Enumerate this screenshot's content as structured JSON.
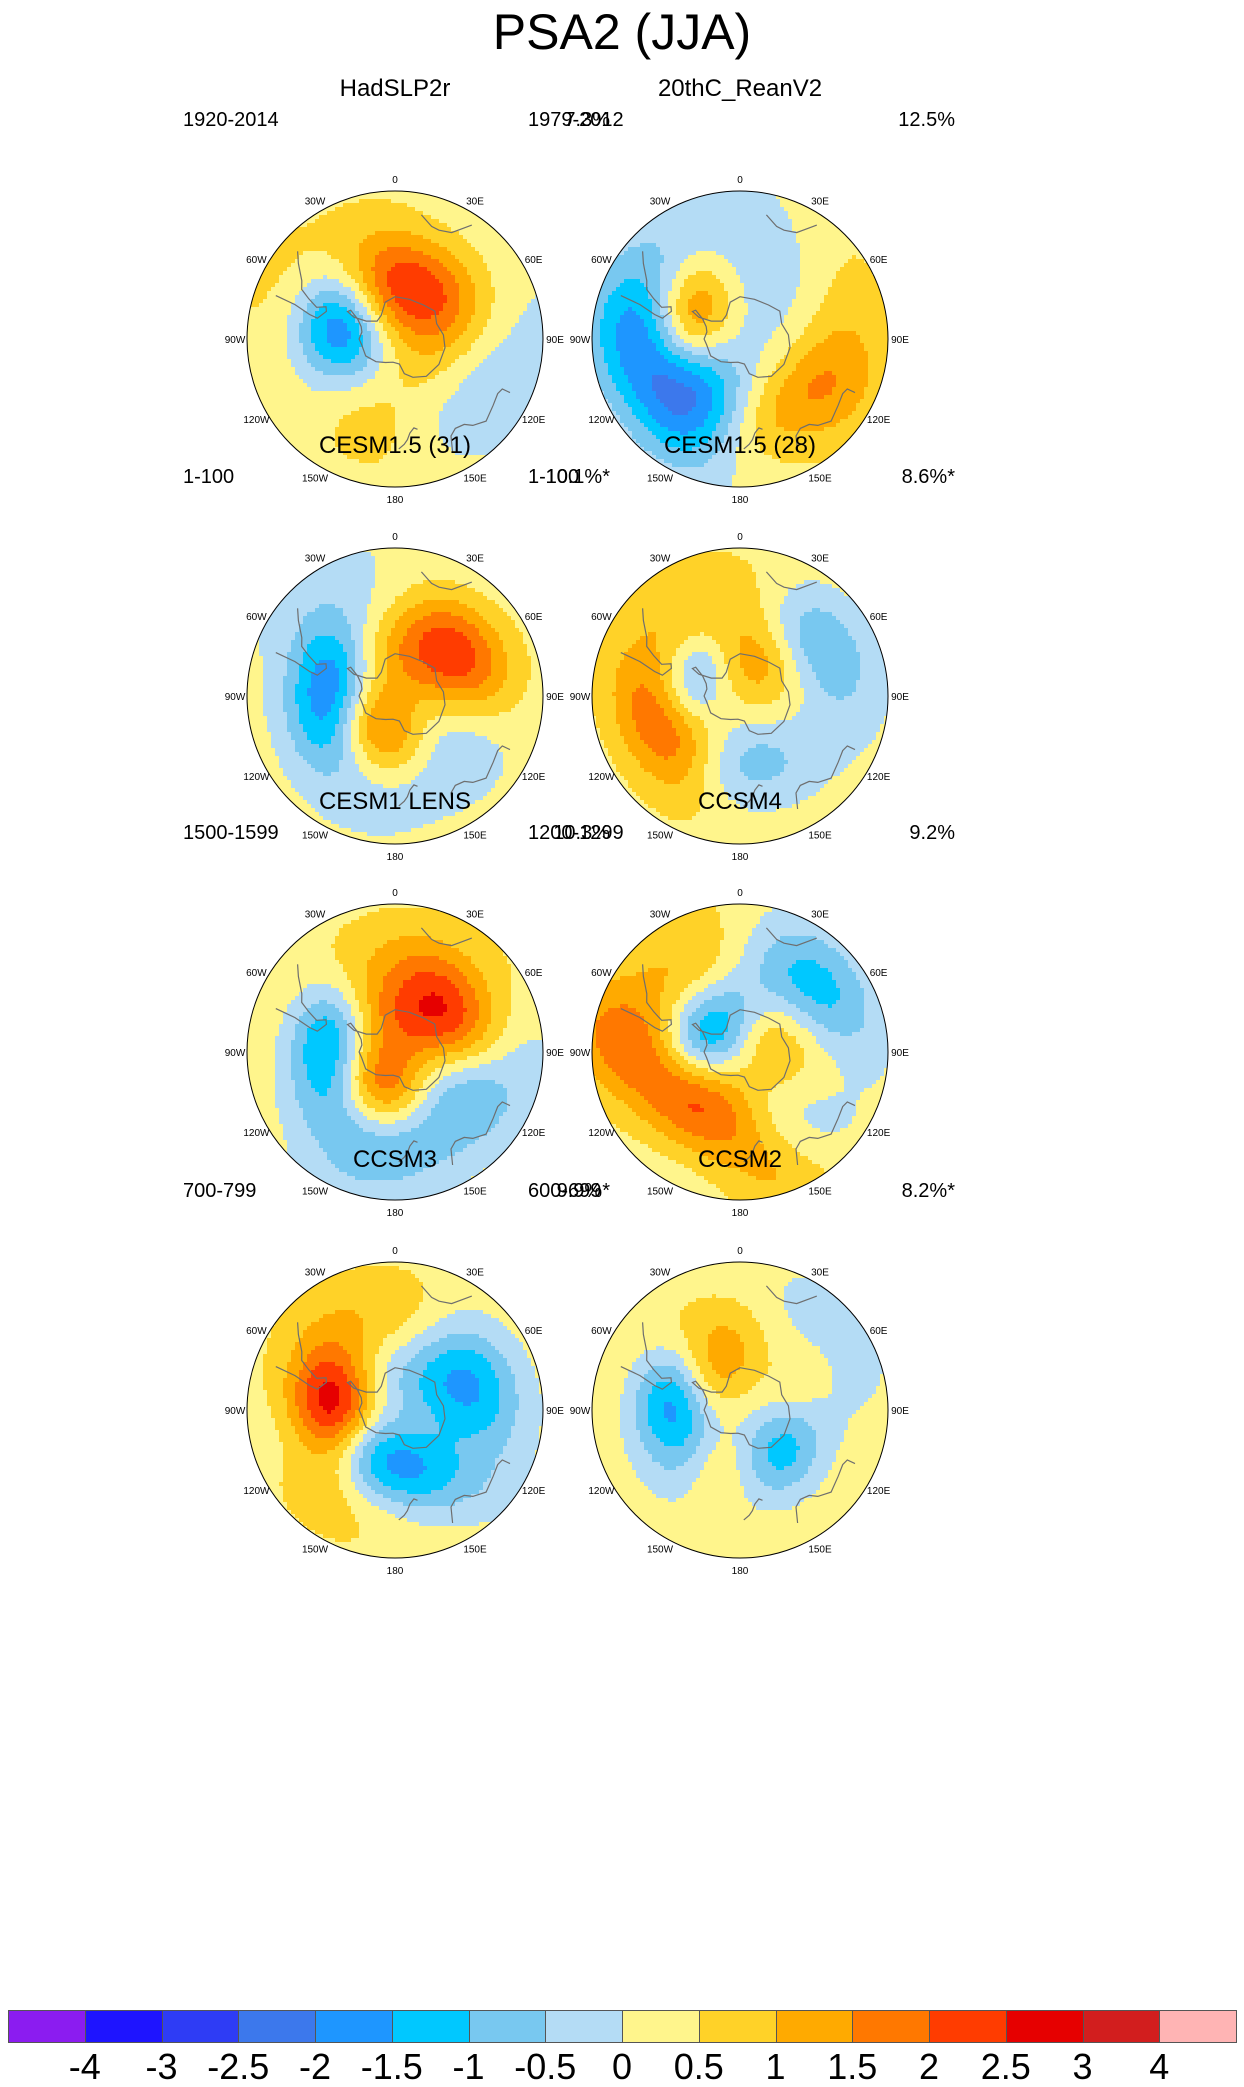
{
  "title": "PSA2 (JJA)",
  "chart_data": {
    "type": "heatmap",
    "projection": "south-polar-stereographic",
    "longitude_labels": [
      "0",
      "30E",
      "60E",
      "90E",
      "120E",
      "150E",
      "180",
      "150W",
      "120W",
      "90W",
      "60W",
      "30W"
    ],
    "colorbar": {
      "colors": [
        "#8B1CF0",
        "#1E14FF",
        "#2E3CF5",
        "#3C78EC",
        "#1E96FF",
        "#00C8FF",
        "#78C8F0",
        "#B4DCF5",
        "#FFF58C",
        "#FFD228",
        "#FFAA00",
        "#FF7800",
        "#FF3C00",
        "#E60000",
        "#D21E1E",
        "#FFB4B4"
      ],
      "labels": [
        "-4",
        "-3",
        "-2.5",
        "-2",
        "-1.5",
        "-1",
        "-0.5",
        "0",
        "0.5",
        "1",
        "1.5",
        "2",
        "2.5",
        "3",
        "4"
      ]
    },
    "panels": [
      {
        "title": "HadSLP2r",
        "period": "1920-2014",
        "percent": "7.3%",
        "features": [
          {
            "lon": -88,
            "lat": -62,
            "a": -3.0,
            "rl": 24,
            "rw": 15
          },
          {
            "lon": -118,
            "lat": -57,
            "a": 1.0,
            "rl": 18,
            "rw": 12
          },
          {
            "lon": 20,
            "lat": -66,
            "a": 1.3,
            "rl": 22,
            "rw": 15
          },
          {
            "lon": 110,
            "lat": -70,
            "a": 0.9,
            "rl": 28,
            "rw": 18
          },
          {
            "lon": -8,
            "lat": -62,
            "a": 1.0,
            "rl": 30,
            "rw": 18
          },
          {
            "lon": 145,
            "lat": -48,
            "a": -0.8,
            "rl": 30,
            "rw": 20
          },
          {
            "lon": 60,
            "lat": -40,
            "a": -0.4,
            "rl": 50,
            "rw": 30
          },
          {
            "lon": -150,
            "lat": -45,
            "a": 0.7,
            "rl": 35,
            "rw": 18
          },
          {
            "lon": -30,
            "lat": -38,
            "a": 0.4,
            "rl": 40,
            "rw": 20
          }
        ]
      },
      {
        "title": "20thC_ReanV2",
        "period": "1979-2012",
        "percent": "12.5%",
        "features": [
          {
            "lon": -72,
            "lat": -64,
            "a": 2.6,
            "rl": 22,
            "rw": 14
          },
          {
            "lon": -115,
            "lat": -52,
            "a": -3.0,
            "rl": 30,
            "rw": 18
          },
          {
            "lon": -50,
            "lat": -43,
            "a": -0.6,
            "rl": 35,
            "rw": 18
          },
          {
            "lon": 30,
            "lat": -60,
            "a": -0.7,
            "rl": 40,
            "rw": 25
          },
          {
            "lon": 90,
            "lat": -42,
            "a": 1.0,
            "rl": 35,
            "rw": 18
          },
          {
            "lon": 145,
            "lat": -52,
            "a": 1.2,
            "rl": 25,
            "rw": 15
          },
          {
            "lon": -160,
            "lat": -65,
            "a": -0.5,
            "rl": 30,
            "rw": 18
          }
        ]
      },
      {
        "title": "CESM1.5 (31)",
        "period": "1-100",
        "percent": "10.1%*",
        "features": [
          {
            "lon": -90,
            "lat": -60,
            "a": -3.2,
            "rl": 22,
            "rw": 14
          },
          {
            "lon": -140,
            "lat": -72,
            "a": 2.2,
            "rl": 22,
            "rw": 14
          },
          {
            "lon": 55,
            "lat": -55,
            "a": 1.8,
            "rl": 25,
            "rw": 16
          },
          {
            "lon": 150,
            "lat": -55,
            "a": -1.0,
            "rl": 30,
            "rw": 18
          },
          {
            "lon": 0,
            "lat": -70,
            "a": 1.0,
            "rl": 25,
            "rw": 15
          },
          {
            "lon": -20,
            "lat": -45,
            "a": -0.5,
            "rl": 40,
            "rw": 25
          }
        ]
      },
      {
        "title": "CESM1.5 (28)",
        "period": "1-100",
        "percent": "8.6%*",
        "features": [
          {
            "lon": -112,
            "lat": -52,
            "a": 2.2,
            "rl": 25,
            "rw": 15
          },
          {
            "lon": -65,
            "lat": -67,
            "a": -1.8,
            "rl": 20,
            "rw": 12
          },
          {
            "lon": 60,
            "lat": -48,
            "a": -1.6,
            "rl": 25,
            "rw": 16
          },
          {
            "lon": 20,
            "lat": -72,
            "a": 1.3,
            "rl": 25,
            "rw": 15
          },
          {
            "lon": 175,
            "lat": -58,
            "a": -1.0,
            "rl": 25,
            "rw": 15
          },
          {
            "lon": -10,
            "lat": -45,
            "a": 0.7,
            "rl": 30,
            "rw": 18
          }
        ]
      },
      {
        "title": "CESM1 LENS",
        "period": "1500-1599",
        "percent": "10.3%",
        "features": [
          {
            "lon": -92,
            "lat": -60,
            "a": -3.0,
            "rl": 22,
            "rw": 14
          },
          {
            "lon": -150,
            "lat": -72,
            "a": 2.4,
            "rl": 22,
            "rw": 14
          },
          {
            "lon": 55,
            "lat": -58,
            "a": 1.5,
            "rl": 22,
            "rw": 14
          },
          {
            "lon": 150,
            "lat": -55,
            "a": -1.8,
            "rl": 35,
            "rw": 18
          },
          {
            "lon": -5,
            "lat": -55,
            "a": 0.8,
            "rl": 35,
            "rw": 20
          },
          {
            "lon": 10,
            "lat": -78,
            "a": 1.0,
            "rl": 20,
            "rw": 15
          }
        ]
      },
      {
        "title": "CCSM4",
        "period": "1200-1299",
        "percent": "9.2%",
        "features": [
          {
            "lon": -45,
            "lat": -73,
            "a": -2.5,
            "rl": 20,
            "rw": 14
          },
          {
            "lon": -140,
            "lat": -58,
            "a": 2.2,
            "rl": 45,
            "rw": 16
          },
          {
            "lon": 50,
            "lat": -43,
            "a": -1.5,
            "rl": 25,
            "rw": 16
          },
          {
            "lon": 40,
            "lat": -75,
            "a": 1.2,
            "rl": 25,
            "rw": 15
          },
          {
            "lon": 160,
            "lat": -50,
            "a": -0.8,
            "rl": 30,
            "rw": 18
          },
          {
            "lon": -50,
            "lat": -40,
            "a": 0.7,
            "rl": 35,
            "rw": 18
          }
        ]
      },
      {
        "title": "CCSM3",
        "period": "700-799",
        "percent": "9.9%*",
        "features": [
          {
            "lon": -90,
            "lat": -60,
            "a": 2.8,
            "rl": 22,
            "rw": 14
          },
          {
            "lon": -165,
            "lat": -65,
            "a": -2.2,
            "rl": 30,
            "rw": 14
          },
          {
            "lon": 70,
            "lat": -52,
            "a": -1.5,
            "rl": 25,
            "rw": 16
          },
          {
            "lon": 20,
            "lat": -72,
            "a": -0.9,
            "rl": 25,
            "rw": 15
          },
          {
            "lon": -10,
            "lat": -48,
            "a": 0.8,
            "rl": 30,
            "rw": 18
          },
          {
            "lon": -135,
            "lat": -45,
            "a": 0.5,
            "rl": 30,
            "rw": 18
          }
        ]
      },
      {
        "title": "CCSM2",
        "period": "600-699",
        "percent": "8.2%*",
        "features": [
          {
            "lon": -95,
            "lat": -60,
            "a": -3.3,
            "rl": 20,
            "rw": 14
          },
          {
            "lon": -55,
            "lat": -70,
            "a": 1.3,
            "rl": 22,
            "rw": 12
          },
          {
            "lon": -140,
            "lat": -63,
            "a": 1.0,
            "rl": 25,
            "rw": 14
          },
          {
            "lon": 130,
            "lat": -62,
            "a": -1.8,
            "rl": 22,
            "rw": 14
          },
          {
            "lon": 40,
            "lat": -40,
            "a": -0.6,
            "rl": 30,
            "rw": 18
          },
          {
            "lon": 80,
            "lat": -58,
            "a": 0.8,
            "rl": 22,
            "rw": 14
          },
          {
            "lon": -30,
            "lat": -50,
            "a": 0.6,
            "rl": 25,
            "rw": 15
          }
        ]
      }
    ]
  }
}
